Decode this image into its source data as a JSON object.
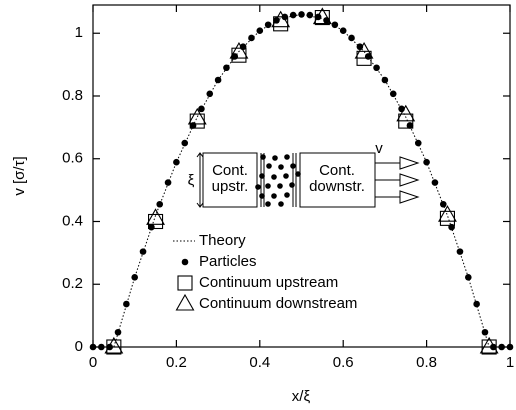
{
  "chart_data": {
    "type": "scatter",
    "x_label": "x/ξ",
    "y_label": "v [σ/τ]",
    "xlim": [
      0,
      1
    ],
    "ylim": [
      0,
      1.09
    ],
    "xticks": [
      0,
      0.2,
      0.4,
      0.6,
      0.8,
      1
    ],
    "yticks": [
      0,
      0.2,
      0.4,
      0.6,
      0.8,
      1
    ],
    "legend": "lower center",
    "series": [
      {
        "name": "Theory",
        "style": "dotted-line",
        "color": "#000000",
        "x": [
          0,
          0.05,
          0.1,
          0.15,
          0.2,
          0.25,
          0.3,
          0.35,
          0.4,
          0.45,
          0.5,
          0.55,
          0.6,
          0.65,
          0.7,
          0.75,
          0.8,
          0.85,
          0.9,
          0.95,
          1
        ],
        "values": [
          0,
          0,
          0.222,
          0.419,
          0.589,
          0.733,
          0.851,
          0.942,
          1.008,
          1.047,
          1.06,
          1.047,
          1.008,
          0.942,
          0.851,
          0.733,
          0.589,
          0.419,
          0.222,
          0,
          0
        ]
      },
      {
        "name": "Particles",
        "style": "circle",
        "color": "#000000",
        "x": [
          0,
          0.02,
          0.04,
          0.06,
          0.08,
          0.1,
          0.12,
          0.14,
          0.16,
          0.18,
          0.2,
          0.22,
          0.24,
          0.26,
          0.28,
          0.3,
          0.32,
          0.34,
          0.36,
          0.38,
          0.4,
          0.42,
          0.44,
          0.46,
          0.48,
          0.5,
          0.52,
          0.54,
          0.56,
          0.58,
          0.6,
          0.62,
          0.64,
          0.66,
          0.68,
          0.7,
          0.72,
          0.74,
          0.76,
          0.78,
          0.8,
          0.82,
          0.84,
          0.86,
          0.88,
          0.9,
          0.92,
          0.94,
          0.96,
          0.98,
          1
        ],
        "values": [
          0,
          0,
          0,
          0.047,
          0.137,
          0.222,
          0.304,
          0.382,
          0.455,
          0.524,
          0.589,
          0.65,
          0.706,
          0.759,
          0.807,
          0.851,
          0.89,
          0.926,
          0.957,
          0.985,
          1.008,
          1.027,
          1.041,
          1.052,
          1.058,
          1.06,
          1.058,
          1.052,
          1.041,
          1.027,
          1.008,
          0.985,
          0.957,
          0.926,
          0.89,
          0.851,
          0.807,
          0.759,
          0.706,
          0.65,
          0.589,
          0.524,
          0.455,
          0.382,
          0.304,
          0.222,
          0.137,
          0.047,
          0,
          0,
          0
        ]
      },
      {
        "name": "Continuum upstream",
        "style": "square",
        "color": "#000000",
        "x": [
          0.05,
          0.15,
          0.25,
          0.35,
          0.45,
          0.55,
          0.65,
          0.75,
          0.85,
          0.95
        ],
        "values": [
          0,
          0.4,
          0.72,
          0.93,
          1.03,
          1.05,
          0.92,
          0.72,
          0.41,
          0
        ]
      },
      {
        "name": "Continuum downstream",
        "style": "triangle",
        "color": "#000000",
        "x": [
          0.05,
          0.15,
          0.25,
          0.35,
          0.45,
          0.55,
          0.65,
          0.75,
          0.85,
          0.95
        ],
        "values": [
          0,
          0.41,
          0.73,
          0.94,
          1.04,
          1.05,
          0.94,
          0.74,
          0.42,
          0
        ]
      }
    ],
    "inset": {
      "upstream": [
        "Cont.",
        "upstr."
      ],
      "downstream": [
        "Cont.",
        "downstr."
      ],
      "width_symbol": "ξ",
      "velocity_symbol": "v"
    }
  }
}
